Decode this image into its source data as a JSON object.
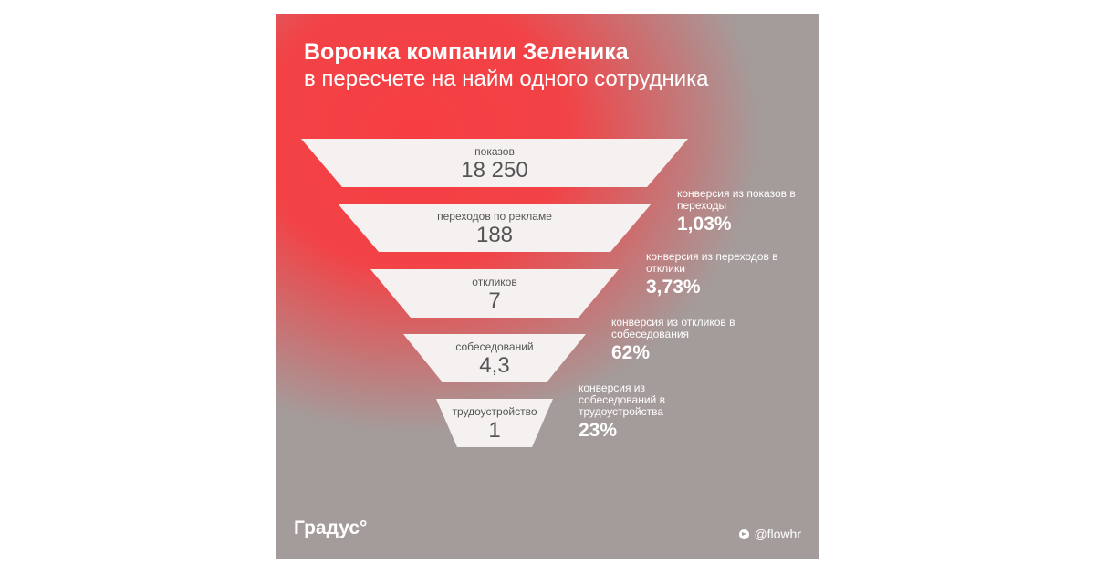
{
  "title": "Воронка компании Зеленика",
  "subtitle": "в пересчете на найм одного сотрудника",
  "colors": {
    "accent": "#f63e42",
    "background": "#a49c9b",
    "funnel_fill": "#f6f1f1",
    "text_dark": "#555555"
  },
  "funnel": [
    {
      "label": "показов",
      "value": "18 250"
    },
    {
      "label": "переходов по рекламе",
      "value": "188"
    },
    {
      "label": "откликов",
      "value": "7"
    },
    {
      "label": "собеседований",
      "value": "4,3"
    },
    {
      "label": "трудоустройство",
      "value": "1"
    }
  ],
  "conversions": [
    {
      "label": "конверсия из показов в переходы",
      "value": "1,03%"
    },
    {
      "label": "конверсия из переходов в отклики",
      "value": "3,73%"
    },
    {
      "label": "конверсия из откликов в собеседования",
      "value": "62%"
    },
    {
      "label": "конверсия из собеседований в трудоустройства",
      "value": "23%"
    }
  ],
  "footer": {
    "brand": "Градус°",
    "handle": "@flowhr",
    "handle_icon": "telegram-icon"
  }
}
